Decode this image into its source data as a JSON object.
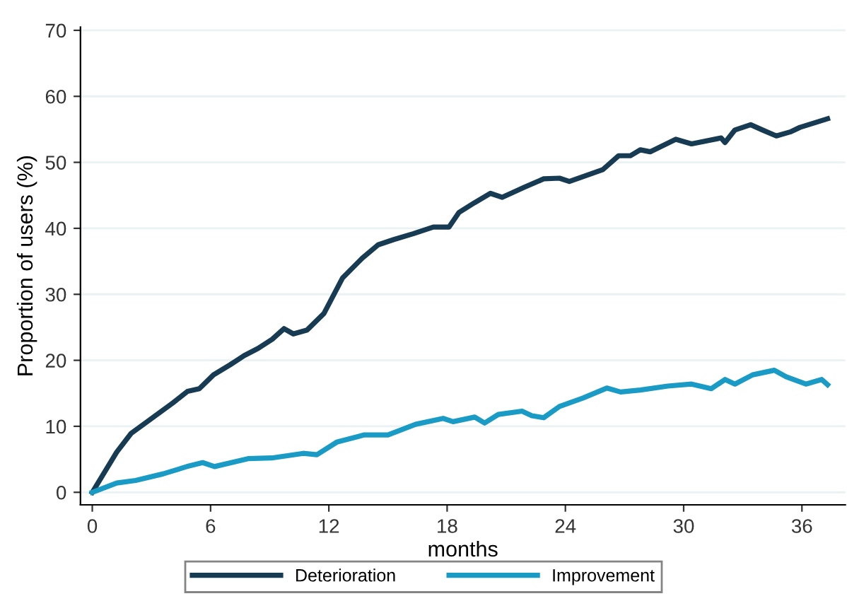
{
  "chart_data": {
    "type": "line",
    "xlabel": "months",
    "ylabel": "Proportion of users (%)",
    "xlim": [
      -0.6,
      38.2
    ],
    "xticks": [
      0,
      6,
      12,
      18,
      24,
      30,
      36
    ],
    "ylim": [
      -1.9,
      70.5
    ],
    "yticks": [
      0,
      10,
      20,
      30,
      40,
      50,
      60,
      70
    ],
    "grid": "y",
    "legend": "bottom",
    "line_style": "solid",
    "marker": "none",
    "series": [
      {
        "name": "Deterioration",
        "color": "#173b52",
        "x": [
          0,
          1.24,
          1.96,
          2.92,
          4.11,
          4.83,
          5.43,
          6.15,
          6.98,
          7.7,
          8.41,
          9.13,
          9.73,
          10.2,
          10.9,
          11.75,
          12.7,
          13.7,
          14.5,
          15.3,
          16.3,
          17.3,
          18.1,
          18.6,
          19.4,
          20.2,
          20.8,
          21.9,
          22.9,
          23.7,
          24.2,
          25.9,
          26.7,
          27.3,
          27.8,
          28.3,
          29.6,
          30.4,
          31.9,
          32.1,
          32.6,
          33.4,
          34.0,
          34.7,
          35.4,
          35.9,
          37.3
        ],
        "values": [
          0,
          6.1,
          8.9,
          11.0,
          13.6,
          15.3,
          15.7,
          17.8,
          19.3,
          20.7,
          21.8,
          23.2,
          24.8,
          24.0,
          24.6,
          27.1,
          32.5,
          35.5,
          37.5,
          38.3,
          39.2,
          40.2,
          40.2,
          42.4,
          43.9,
          45.3,
          44.7,
          46.2,
          47.5,
          47.6,
          47.1,
          48.9,
          51.0,
          51.0,
          51.9,
          51.6,
          53.5,
          52.8,
          53.7,
          53.0,
          54.9,
          55.7,
          54.9,
          54.0,
          54.6,
          55.3,
          56.6
        ]
      },
      {
        "name": "Improvement",
        "color": "#1a9bc6",
        "x": [
          0,
          1.24,
          2.2,
          3.6,
          4.8,
          5.6,
          6.2,
          7.9,
          9.1,
          10.7,
          11.4,
          12.4,
          13.8,
          15.0,
          16.4,
          17.8,
          18.3,
          19.4,
          19.9,
          20.6,
          21.8,
          22.3,
          22.9,
          23.7,
          24.9,
          26.1,
          26.8,
          27.8,
          29.2,
          30.4,
          31.4,
          32.1,
          32.6,
          33.5,
          34.6,
          35.2,
          36.2,
          37.0,
          37.3
        ],
        "values": [
          0,
          1.4,
          1.8,
          2.8,
          3.9,
          4.5,
          3.9,
          5.1,
          5.2,
          5.9,
          5.7,
          7.6,
          8.7,
          8.7,
          10.3,
          11.2,
          10.7,
          11.4,
          10.5,
          11.8,
          12.3,
          11.6,
          11.3,
          13.0,
          14.3,
          15.8,
          15.2,
          15.5,
          16.1,
          16.4,
          15.7,
          17.1,
          16.4,
          17.8,
          18.5,
          17.5,
          16.4,
          17.1,
          16.3
        ]
      }
    ]
  }
}
